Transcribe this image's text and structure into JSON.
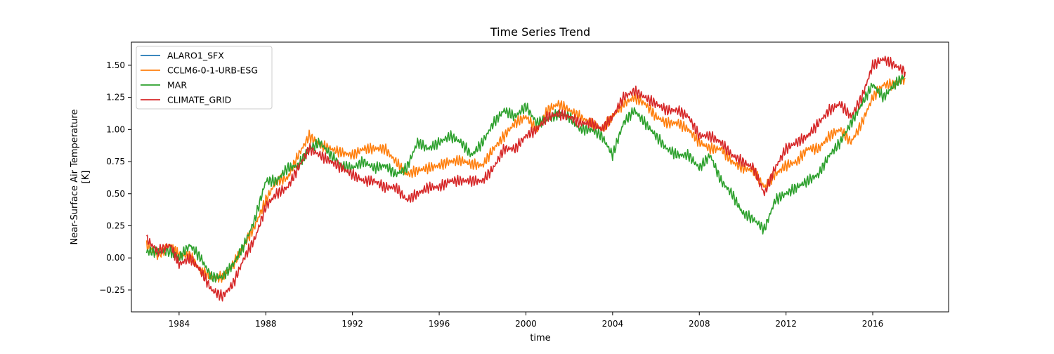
{
  "chart_data": {
    "type": "line",
    "title": "Time Series Trend",
    "xlabel": "time",
    "ylabel_line1": "Near-Surface Air Temperature",
    "ylabel_line2": "[K]",
    "xlim": [
      1981.8,
      2019.5
    ],
    "ylim": [
      -0.42,
      1.68
    ],
    "xticks": [
      1984,
      1988,
      1992,
      1996,
      2000,
      2004,
      2008,
      2012,
      2016
    ],
    "xtick_labels": [
      "1984",
      "1988",
      "1992",
      "1996",
      "2000",
      "2004",
      "2008",
      "2012",
      "2016"
    ],
    "yticks": [
      -0.25,
      0.0,
      0.25,
      0.5,
      0.75,
      1.0,
      1.25,
      1.5
    ],
    "ytick_labels": [
      "−0.25",
      "0.00",
      "0.25",
      "0.50",
      "0.75",
      "1.00",
      "1.25",
      "1.50"
    ],
    "grid": false,
    "legend_position": "top-left",
    "series": [
      {
        "name": "ALARO1_SFX",
        "color": "#1f77b4",
        "x": [],
        "y": []
      },
      {
        "name": "CCLM6-0-1-URB-ESG",
        "color": "#ff7f0e",
        "x": [
          1982.5,
          1983.0,
          1983.6,
          1984.0,
          1984.5,
          1985.0,
          1985.5,
          1986.0,
          1986.5,
          1987.0,
          1987.5,
          1988.0,
          1988.5,
          1989.0,
          1989.5,
          1990.0,
          1990.5,
          1991.0,
          1991.5,
          1992.0,
          1992.5,
          1993.0,
          1993.5,
          1994.0,
          1994.5,
          1995.0,
          1995.5,
          1996.0,
          1996.5,
          1997.0,
          1997.5,
          1998.0,
          1998.5,
          1999.0,
          1999.5,
          2000.0,
          2000.5,
          2001.0,
          2001.5,
          2002.0,
          2002.5,
          2003.0,
          2003.5,
          2004.0,
          2004.5,
          2005.0,
          2005.5,
          2006.0,
          2006.5,
          2007.0,
          2007.5,
          2008.0,
          2008.5,
          2009.0,
          2009.5,
          2010.0,
          2010.5,
          2011.0,
          2011.5,
          2012.0,
          2012.5,
          2013.0,
          2013.5,
          2014.0,
          2014.5,
          2015.0,
          2015.5,
          2016.0,
          2016.5,
          2017.0,
          2017.5
        ],
        "y": [
          0.1,
          0.02,
          0.1,
          0.02,
          0.02,
          -0.1,
          -0.15,
          -0.15,
          -0.05,
          0.1,
          0.25,
          0.45,
          0.6,
          0.62,
          0.8,
          0.95,
          0.88,
          0.85,
          0.82,
          0.8,
          0.85,
          0.85,
          0.85,
          0.75,
          0.65,
          0.68,
          0.7,
          0.72,
          0.75,
          0.76,
          0.73,
          0.72,
          0.85,
          0.95,
          1.05,
          1.1,
          1.0,
          1.15,
          1.2,
          1.15,
          1.1,
          1.05,
          1.0,
          1.1,
          1.2,
          1.25,
          1.2,
          1.1,
          1.05,
          1.05,
          1.0,
          0.9,
          0.85,
          0.85,
          0.75,
          0.7,
          0.68,
          0.55,
          0.65,
          0.72,
          0.75,
          0.85,
          0.85,
          0.95,
          1.0,
          0.9,
          1.05,
          1.25,
          1.35,
          1.35,
          1.4
        ]
      },
      {
        "name": "MAR",
        "color": "#2ca02c",
        "x": [
          1982.5,
          1983.0,
          1983.6,
          1984.0,
          1984.5,
          1985.0,
          1985.5,
          1986.0,
          1986.5,
          1987.0,
          1987.5,
          1988.0,
          1988.5,
          1989.0,
          1989.5,
          1990.0,
          1990.5,
          1991.0,
          1991.5,
          1992.0,
          1992.5,
          1993.0,
          1993.5,
          1994.0,
          1994.5,
          1995.0,
          1995.5,
          1996.0,
          1996.5,
          1997.0,
          1997.5,
          1998.0,
          1998.5,
          1999.0,
          1999.5,
          2000.0,
          2000.5,
          2001.0,
          2001.5,
          2002.0,
          2002.5,
          2003.0,
          2003.5,
          2004.0,
          2004.5,
          2005.0,
          2005.5,
          2006.0,
          2006.5,
          2007.0,
          2007.5,
          2008.0,
          2008.5,
          2009.0,
          2009.5,
          2010.0,
          2010.5,
          2011.0,
          2011.5,
          2012.0,
          2012.5,
          2013.0,
          2013.5,
          2014.0,
          2014.5,
          2015.0,
          2015.5,
          2016.0,
          2016.5,
          2017.0,
          2017.5
        ],
        "y": [
          0.05,
          0.05,
          0.05,
          0.0,
          0.1,
          0.0,
          -0.15,
          -0.15,
          -0.05,
          0.1,
          0.3,
          0.6,
          0.6,
          0.7,
          0.72,
          0.85,
          0.9,
          0.8,
          0.72,
          0.7,
          0.75,
          0.7,
          0.72,
          0.65,
          0.7,
          0.9,
          0.85,
          0.9,
          0.95,
          0.9,
          0.8,
          0.9,
          1.05,
          1.15,
          1.1,
          1.18,
          1.05,
          1.08,
          1.12,
          1.1,
          1.0,
          1.0,
          0.95,
          0.8,
          1.05,
          1.15,
          1.05,
          0.95,
          0.85,
          0.8,
          0.8,
          0.7,
          0.8,
          0.6,
          0.5,
          0.35,
          0.3,
          0.22,
          0.45,
          0.5,
          0.55,
          0.6,
          0.65,
          0.8,
          0.9,
          1.05,
          1.2,
          1.35,
          1.25,
          1.35,
          1.42
        ]
      },
      {
        "name": "CLIMATE_GRID",
        "color": "#d62728",
        "x": [
          1982.5,
          1983.0,
          1983.6,
          1984.0,
          1984.5,
          1985.0,
          1985.5,
          1986.0,
          1986.5,
          1987.0,
          1987.5,
          1988.0,
          1988.5,
          1989.0,
          1989.5,
          1990.0,
          1990.5,
          1991.0,
          1991.5,
          1992.0,
          1992.5,
          1993.0,
          1993.5,
          1994.0,
          1994.5,
          1995.0,
          1995.5,
          1996.0,
          1996.5,
          1997.0,
          1997.5,
          1998.0,
          1998.5,
          1999.0,
          1999.5,
          2000.0,
          2000.5,
          2001.0,
          2001.5,
          2002.0,
          2002.5,
          2003.0,
          2003.5,
          2004.0,
          2004.5,
          2005.0,
          2005.5,
          2006.0,
          2006.5,
          2007.0,
          2007.5,
          2008.0,
          2008.5,
          2009.0,
          2009.5,
          2010.0,
          2010.5,
          2011.0,
          2011.5,
          2012.0,
          2012.5,
          2013.0,
          2013.5,
          2014.0,
          2014.5,
          2015.0,
          2015.5,
          2016.0,
          2016.5,
          2017.0,
          2017.5
        ],
        "y": [
          0.15,
          0.05,
          0.1,
          -0.05,
          0.0,
          -0.1,
          -0.25,
          -0.3,
          -0.2,
          0.0,
          0.15,
          0.4,
          0.5,
          0.55,
          0.7,
          0.85,
          0.8,
          0.75,
          0.7,
          0.65,
          0.6,
          0.6,
          0.55,
          0.55,
          0.45,
          0.5,
          0.55,
          0.55,
          0.6,
          0.6,
          0.6,
          0.6,
          0.7,
          0.85,
          0.85,
          0.95,
          1.0,
          1.1,
          1.12,
          1.1,
          1.05,
          1.05,
          1.0,
          1.1,
          1.25,
          1.3,
          1.25,
          1.2,
          1.15,
          1.15,
          1.1,
          0.95,
          0.95,
          0.9,
          0.8,
          0.75,
          0.7,
          0.5,
          0.7,
          0.85,
          0.9,
          0.95,
          1.05,
          1.15,
          1.2,
          1.1,
          1.25,
          1.5,
          1.55,
          1.5,
          1.45
        ]
      }
    ]
  }
}
